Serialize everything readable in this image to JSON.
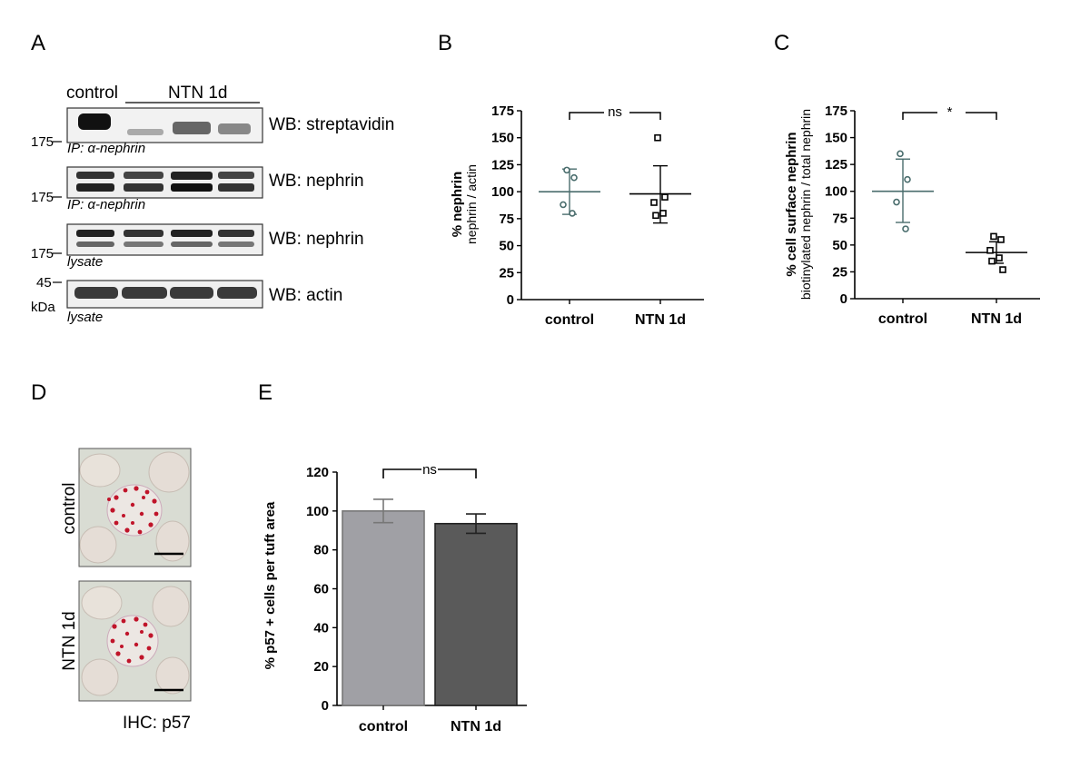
{
  "panels": {
    "A": {
      "letter": "A",
      "header_control": "control",
      "header_treat": "NTN 1d",
      "blots": [
        {
          "wb_label": "WB: streptavidin",
          "marker": "175",
          "sub_label": "IP: α-nephrin"
        },
        {
          "wb_label": "WB: nephrin",
          "marker": "175",
          "sub_label": "IP: α-nephrin"
        },
        {
          "wb_label": "WB: nephrin",
          "marker": "175",
          "sub_label": "lysate"
        },
        {
          "wb_label": "WB: actin",
          "marker": "45",
          "sub_label": "lysate"
        }
      ],
      "unit": "kDa"
    },
    "D": {
      "letter": "D",
      "row_labels": [
        "control",
        "NTN 1d"
      ],
      "caption": "IHC: p57"
    }
  },
  "chart_data": [
    {
      "panel": "B",
      "type": "scatter",
      "ylabel_bold": "% nephrin",
      "ylabel_sub": "nephrin / actin",
      "ylim": [
        0,
        175
      ],
      "yticks": [
        0,
        25,
        50,
        75,
        100,
        125,
        150,
        175
      ],
      "categories": [
        "control",
        "NTN 1d"
      ],
      "significance": "ns",
      "series": [
        {
          "category": "control",
          "points": [
            120,
            113,
            88,
            80
          ],
          "mean": 100,
          "sd_low": 79,
          "sd_high": 121,
          "color": "#4a6d6d",
          "marker": "circle"
        },
        {
          "category": "NTN 1d",
          "points": [
            150,
            95,
            90,
            80,
            78
          ],
          "mean": 98,
          "sd_low": 71,
          "sd_high": 124,
          "color": "#000000",
          "marker": "square"
        }
      ]
    },
    {
      "panel": "C",
      "type": "scatter",
      "ylabel_bold": "% cell surface nephrin",
      "ylabel_sub": "biotinylated nephrin / total nephrin",
      "ylim": [
        0,
        175
      ],
      "yticks": [
        0,
        25,
        50,
        75,
        100,
        125,
        150,
        175
      ],
      "categories": [
        "control",
        "NTN 1d"
      ],
      "significance": "*",
      "series": [
        {
          "category": "control",
          "points": [
            135,
            111,
            90,
            65
          ],
          "mean": 100,
          "sd_low": 71,
          "sd_high": 130,
          "color": "#4a6d6d",
          "marker": "circle"
        },
        {
          "category": "NTN 1d",
          "points": [
            58,
            55,
            45,
            38,
            35,
            27
          ],
          "mean": 43,
          "sd_low": 33,
          "sd_high": 53,
          "color": "#000000",
          "marker": "square"
        }
      ]
    },
    {
      "panel": "E",
      "type": "bar",
      "ylabel": "% p57 + cells per tuft area",
      "ylim": [
        0,
        120
      ],
      "yticks": [
        0,
        20,
        40,
        60,
        80,
        100,
        120
      ],
      "categories": [
        "control",
        "NTN 1d"
      ],
      "values": [
        100,
        93.5
      ],
      "errors": [
        6,
        5
      ],
      "bar_colors": [
        "#a0a0a5",
        "#5a5a5a"
      ],
      "significance": "ns"
    }
  ]
}
